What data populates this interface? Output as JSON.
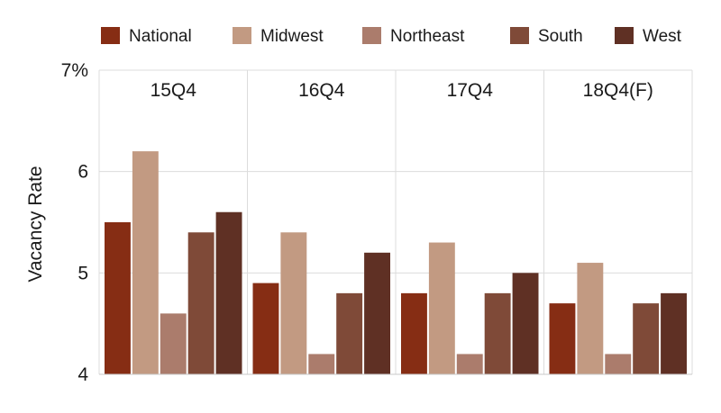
{
  "chart_data": {
    "type": "bar",
    "categories": [
      "15Q4",
      "16Q4",
      "17Q4",
      "18Q4(F)"
    ],
    "series": [
      {
        "name": "National",
        "color": "#862d14",
        "values": [
          5.5,
          4.9,
          4.8,
          4.7
        ]
      },
      {
        "name": "Midwest",
        "color": "#c29a82",
        "values": [
          6.2,
          5.4,
          5.3,
          5.1
        ]
      },
      {
        "name": "Northeast",
        "color": "#ab7c6c",
        "values": [
          4.6,
          4.2,
          4.2,
          4.2
        ]
      },
      {
        "name": "South",
        "color": "#7f4a38",
        "values": [
          5.4,
          4.8,
          4.8,
          4.7
        ]
      },
      {
        "name": "West",
        "color": "#5f3024",
        "values": [
          5.6,
          5.2,
          5.0,
          4.8
        ]
      }
    ],
    "yticks": [
      {
        "value": 4,
        "label": "4"
      },
      {
        "value": 5,
        "label": "5"
      },
      {
        "value": 6,
        "label": "6"
      },
      {
        "value": 7,
        "label": "7%"
      }
    ],
    "ylabel": "Vacancy Rate",
    "xlabel": "",
    "title": "",
    "ylim": [
      4,
      7
    ],
    "grid": true,
    "legend": "top"
  }
}
